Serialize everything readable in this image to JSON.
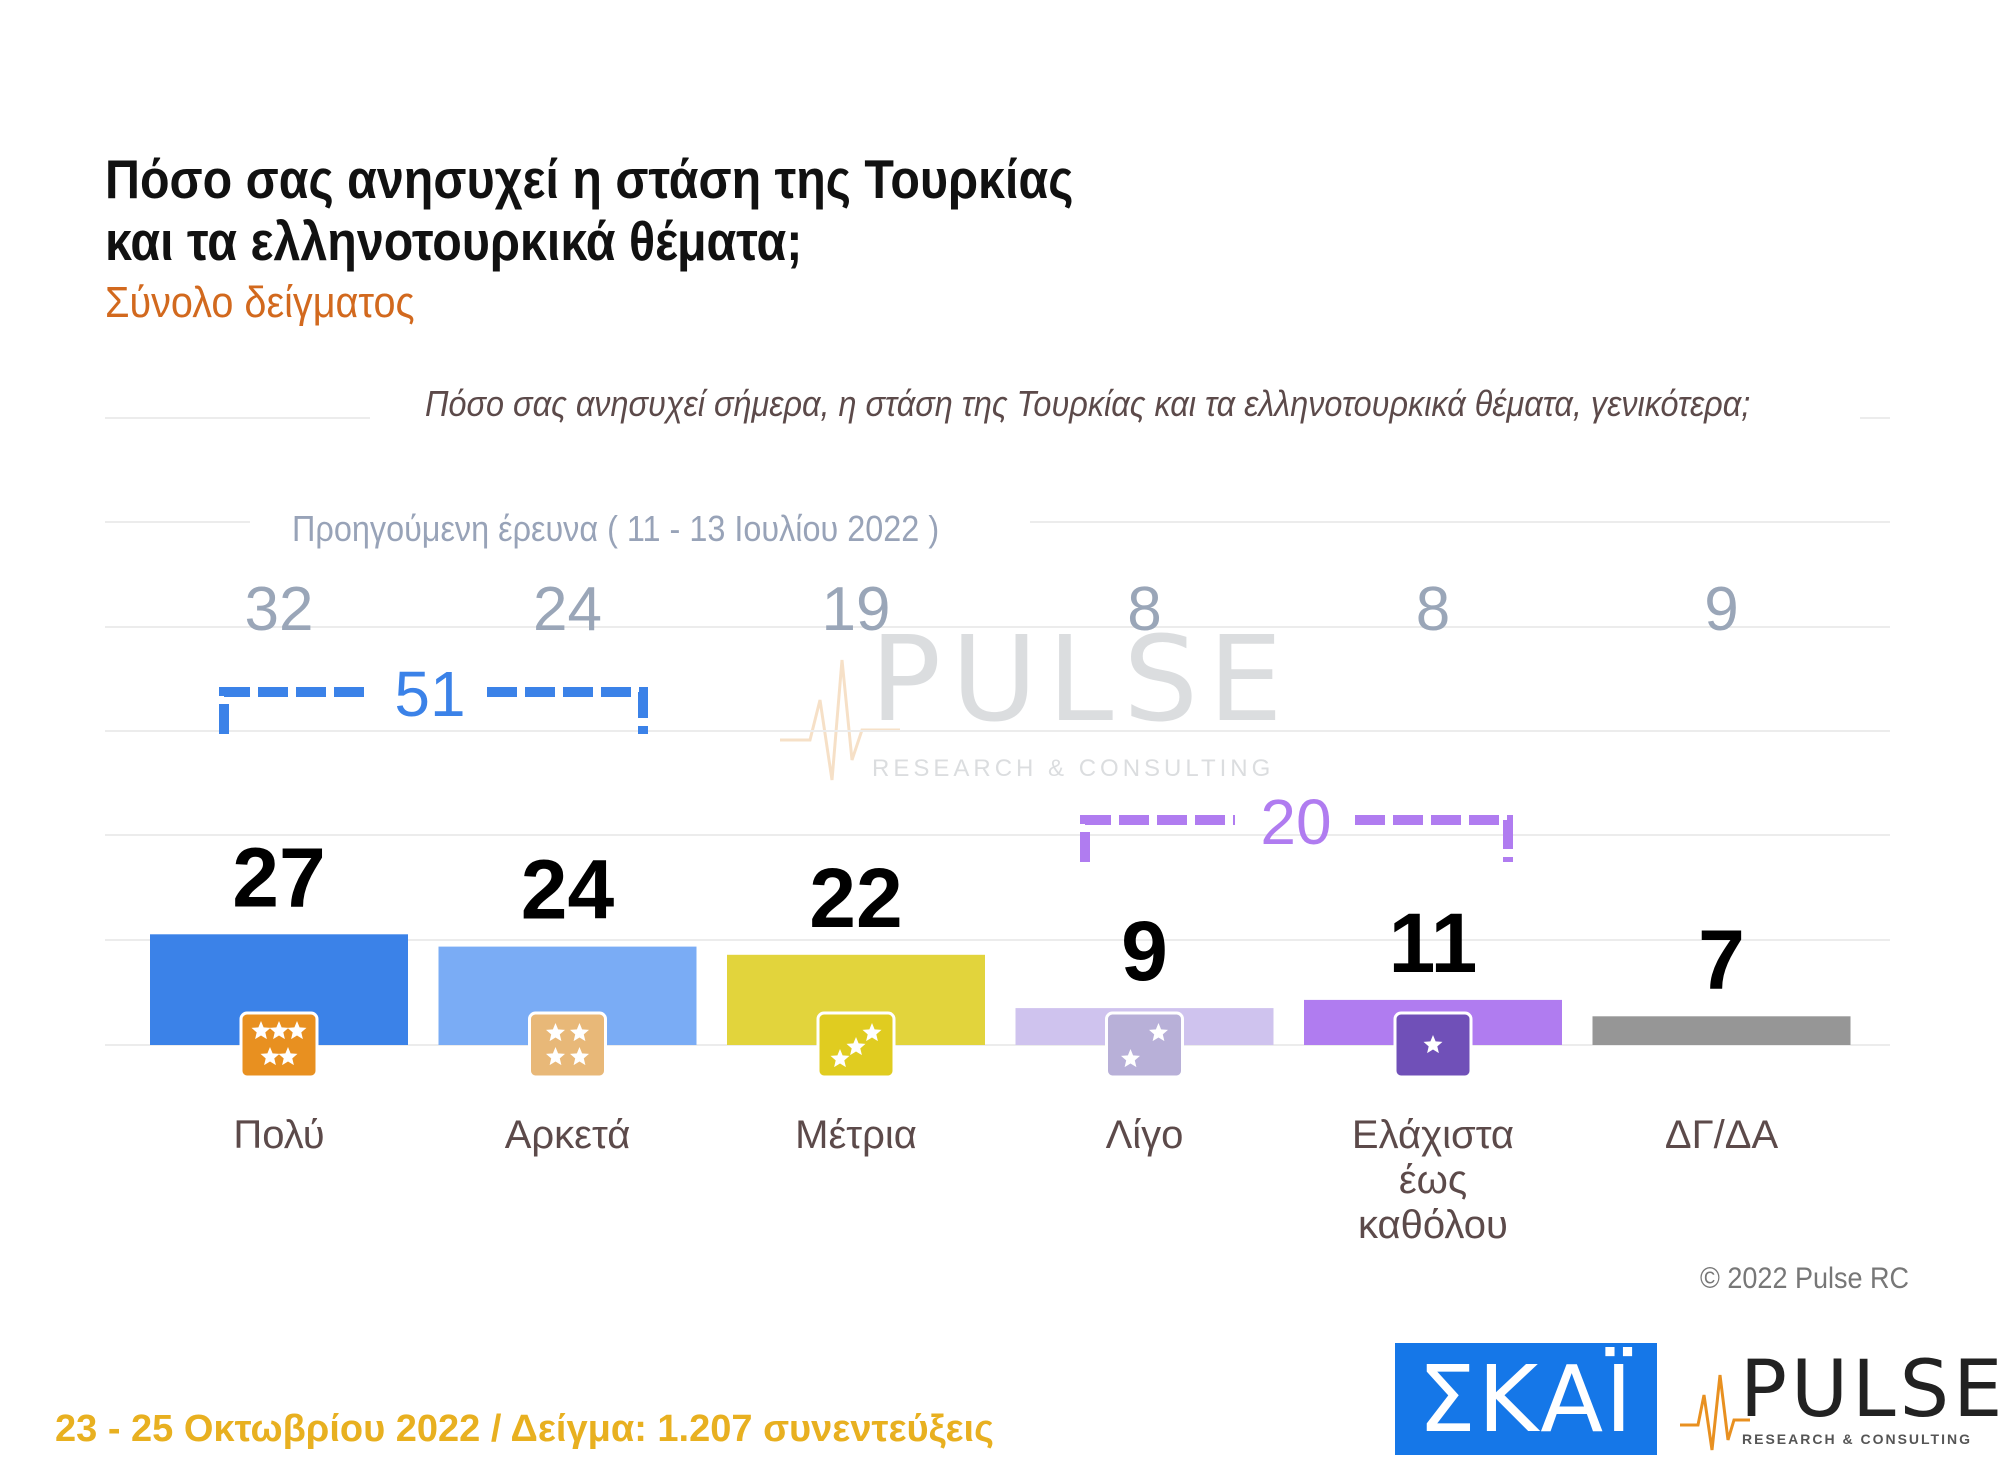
{
  "title_lines": [
    "Πόσο σας ανησυχεί η στάση της Τουρκίας",
    "και τα ελληνοτουρκικά θέματα;"
  ],
  "subtitle": "Σύνολο δείγματος",
  "question": "Πόσο σας ανησυχεί σήμερα, η στάση της Τουρκίας και τα ελληνοτουρκικά θέματα, γενικότερα;",
  "previous_survey_label": "Προηγούμενη έρευνα  ( 11 - 13 Ιουλίου  2022 )",
  "copyright": "© 2022 Pulse RC",
  "footer": "23 - 25  Οκτωβρίου  2022  /  Δείγμα:  1.207 συνεντεύξεις",
  "logos": {
    "skai": "ΣΚΑΪ",
    "pulse": "PULSE",
    "pulse_sub": "RESEARCH & CONSULTING",
    "watermark": "PULSE",
    "watermark_sub": "RESEARCH & CONSULTING"
  },
  "chart_data": {
    "type": "bar",
    "categories": [
      "Πολύ",
      "Αρκετά",
      "Μέτρια",
      "Λίγο",
      "Ελάχιστα έως καθόλου",
      "ΔΓ/ΔΑ"
    ],
    "category_lines": [
      [
        "Πολύ"
      ],
      [
        "Αρκετά"
      ],
      [
        "Μέτρια"
      ],
      [
        "Λίγο"
      ],
      [
        "Ελάχιστα",
        "έως",
        "καθόλου"
      ],
      [
        "ΔΓ/ΔΑ"
      ]
    ],
    "series": [
      {
        "values": [
          27,
          24,
          22,
          9,
          11,
          7
        ]
      },
      {
        "values": [
          32,
          24,
          19,
          8,
          8,
          9
        ]
      }
    ],
    "colors": [
      "#3b82e8",
      "#7aacf5",
      "#e2d43c",
      "#cfc3ee",
      "#b07cf0",
      "#969696"
    ],
    "icon_colors": [
      "#e89020",
      "#e8b878",
      "#e0cc20",
      "#b8b0d8",
      "#7050b8",
      ""
    ],
    "icon_stars": [
      5,
      4,
      3,
      2,
      1,
      0
    ],
    "groups": [
      {
        "value": "51",
        "from": 0,
        "to": 1,
        "color": "#3b82e8"
      },
      {
        "value": "20",
        "from": 3,
        "to": 4,
        "color": "#b07cf0"
      }
    ],
    "ylim": [
      0,
      100
    ]
  }
}
